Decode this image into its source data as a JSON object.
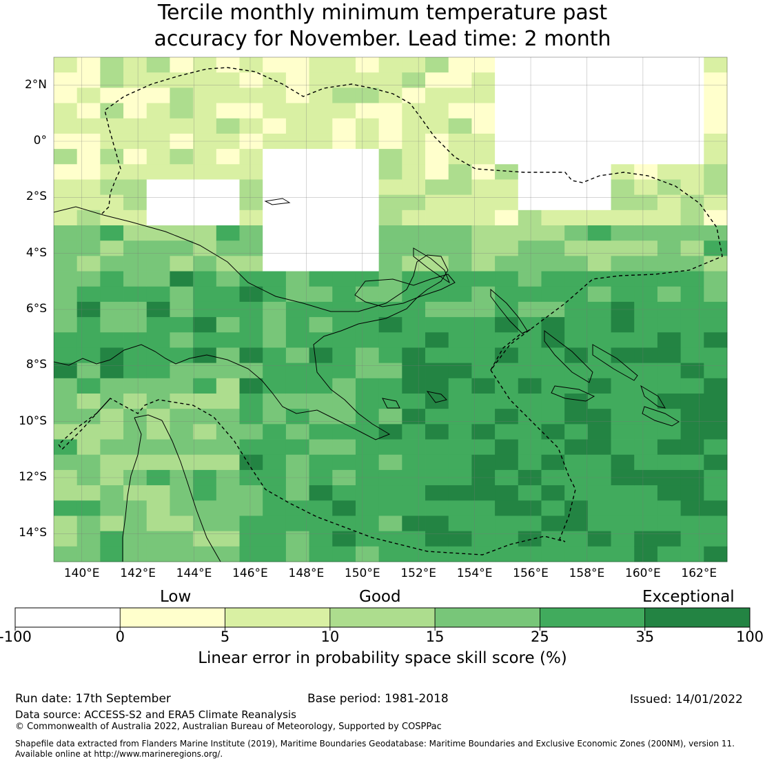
{
  "title": {
    "line1": "Tercile monthly minimum temperature past",
    "line2": "accuracy for November. Lead time: 2 month"
  },
  "map": {
    "lat_labels": [
      "2°N",
      "0°",
      "2°S",
      "4°S",
      "6°S",
      "8°S",
      "10°S",
      "12°S",
      "14°S"
    ],
    "lon_labels": [
      "140°E",
      "142°E",
      "144°E",
      "146°E",
      "148°E",
      "150°E",
      "152°E",
      "154°E",
      "156°E",
      "158°E",
      "160°E",
      "162°E"
    ],
    "lon_range": [
      139,
      163
    ],
    "lat_range": [
      -15,
      3
    ]
  },
  "legend": {
    "categories": [
      "Low",
      "Good",
      "Exceptional"
    ],
    "ticks": [
      "-100",
      "0",
      "5",
      "10",
      "15",
      "25",
      "35",
      "100"
    ],
    "colors": [
      "#ffffff",
      "#ffffcc",
      "#d9f0a3",
      "#addd8e",
      "#78c679",
      "#41ab5d",
      "#238443"
    ],
    "label": "Linear error in probability space skill score (%)"
  },
  "footer": {
    "run_date": "Run date: 17th September",
    "base_period": "Base period: 1981-2018",
    "issued": "Issued: 14/01/2022",
    "data_source": "Data source: ACCESS-S2 and ERA5 Climate Reanalysis",
    "copyright": "© Commonwealth of Australia 2022, Australian Bureau of Meteorology, Supported by COSPPac",
    "shapefile_line1": "Shapefile data extracted from Flanders Marine Institute (2019), Maritime Boundaries Geodatabase: Maritime Boundaries and Exclusive Economic Zones (200NM), version 11.",
    "shapefile_line2": "Available online at http://www.marineregions.org/."
  }
}
